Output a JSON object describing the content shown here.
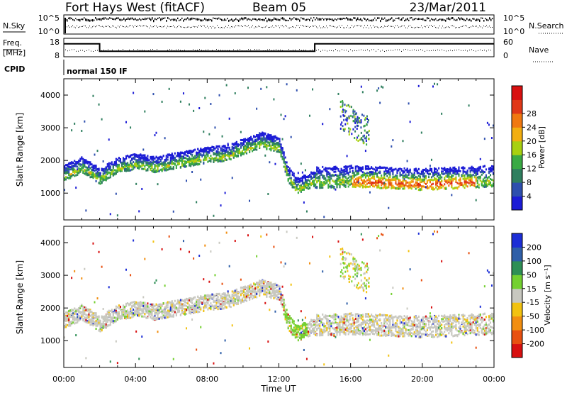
{
  "header": {
    "station": "Fort Hays West (fitACF)",
    "beam": "Beam 05",
    "date": "23/Mar/2011"
  },
  "noise_panel": {
    "left_label": "N.Sky",
    "right_label": "N.Search",
    "left_ticks": [
      "10^5",
      "10^0"
    ],
    "right_ticks": [
      "10^5",
      "10^0"
    ]
  },
  "freq_panel": {
    "left_label_line1": "Freq.",
    "left_label_line2": "[MHz]",
    "right_label": "Nave",
    "left_ticks": [
      "18",
      "8"
    ],
    "right_ticks": [
      "60",
      "0"
    ],
    "freq_levels": [
      {
        "from_hour": 0,
        "to_hour": 2,
        "mhz": 15
      },
      {
        "from_hour": 2,
        "to_hour": 14,
        "mhz": 11
      },
      {
        "from_hour": 14,
        "to_hour": 24,
        "mhz": 15
      }
    ]
  },
  "cpid": {
    "label": "CPID",
    "text": "normal 150 IF"
  },
  "chart_data": [
    {
      "type": "heatmap",
      "quantity": "Power",
      "ylabel": "Slant Range [km]",
      "colorbar_label": "Power [dB]",
      "ylim": [
        180,
        4500
      ],
      "yticks": [
        "1000",
        "2000",
        "3000",
        "4000"
      ],
      "colorbar_ticks": [
        "4",
        "8",
        "12",
        "16",
        "20",
        "24",
        "28"
      ],
      "colorbar_colors": [
        "#1c1cd6",
        "#2e4fae",
        "#2f7f5f",
        "#3aaa44",
        "#a8d010",
        "#f2ae10",
        "#f07810",
        "#e03818",
        "#d81010"
      ],
      "band_centers": [
        {
          "hour": 0,
          "km": 1650
        },
        {
          "hour": 1,
          "km": 1900
        },
        {
          "hour": 2,
          "km": 1550
        },
        {
          "hour": 3,
          "km": 1900
        },
        {
          "hour": 4,
          "km": 2000
        },
        {
          "hour": 5,
          "km": 1900
        },
        {
          "hour": 6,
          "km": 2000
        },
        {
          "hour": 7,
          "km": 2100
        },
        {
          "hour": 8,
          "km": 2200
        },
        {
          "hour": 9,
          "km": 2250
        },
        {
          "hour": 10,
          "km": 2450
        },
        {
          "hour": 11,
          "km": 2650
        },
        {
          "hour": 12,
          "km": 2500
        },
        {
          "hour": 12.5,
          "km": 1600
        },
        {
          "hour": 13,
          "km": 1250
        },
        {
          "hour": 14,
          "km": 1500
        },
        {
          "hour": 16,
          "km": 1550
        },
        {
          "hour": 18,
          "km": 1500
        },
        {
          "hour": 20,
          "km": 1450
        },
        {
          "hour": 22,
          "km": 1500
        },
        {
          "hour": 24,
          "km": 1550
        }
      ]
    },
    {
      "type": "heatmap",
      "quantity": "Velocity",
      "ylabel": "Slant Range [km]",
      "colorbar_label": "Velocity [m s⁻¹]",
      "ylim": [
        180,
        4500
      ],
      "yticks": [
        "1000",
        "2000",
        "3000",
        "4000"
      ],
      "colorbar_ticks": [
        "200",
        "100",
        "50",
        "15",
        "-15",
        "-50",
        "-100",
        "-200"
      ],
      "colorbar_colors": [
        "#1c2ed6",
        "#2f5fa8",
        "#2e8f55",
        "#74d030",
        "#c8c8c0",
        "#f2c210",
        "#f28e10",
        "#e85010",
        "#d81010"
      ]
    }
  ],
  "x_axis": {
    "label": "Time UT",
    "ticks": [
      "00:00",
      "04:00",
      "08:00",
      "12:00",
      "16:00",
      "20:00",
      "00:00"
    ]
  }
}
